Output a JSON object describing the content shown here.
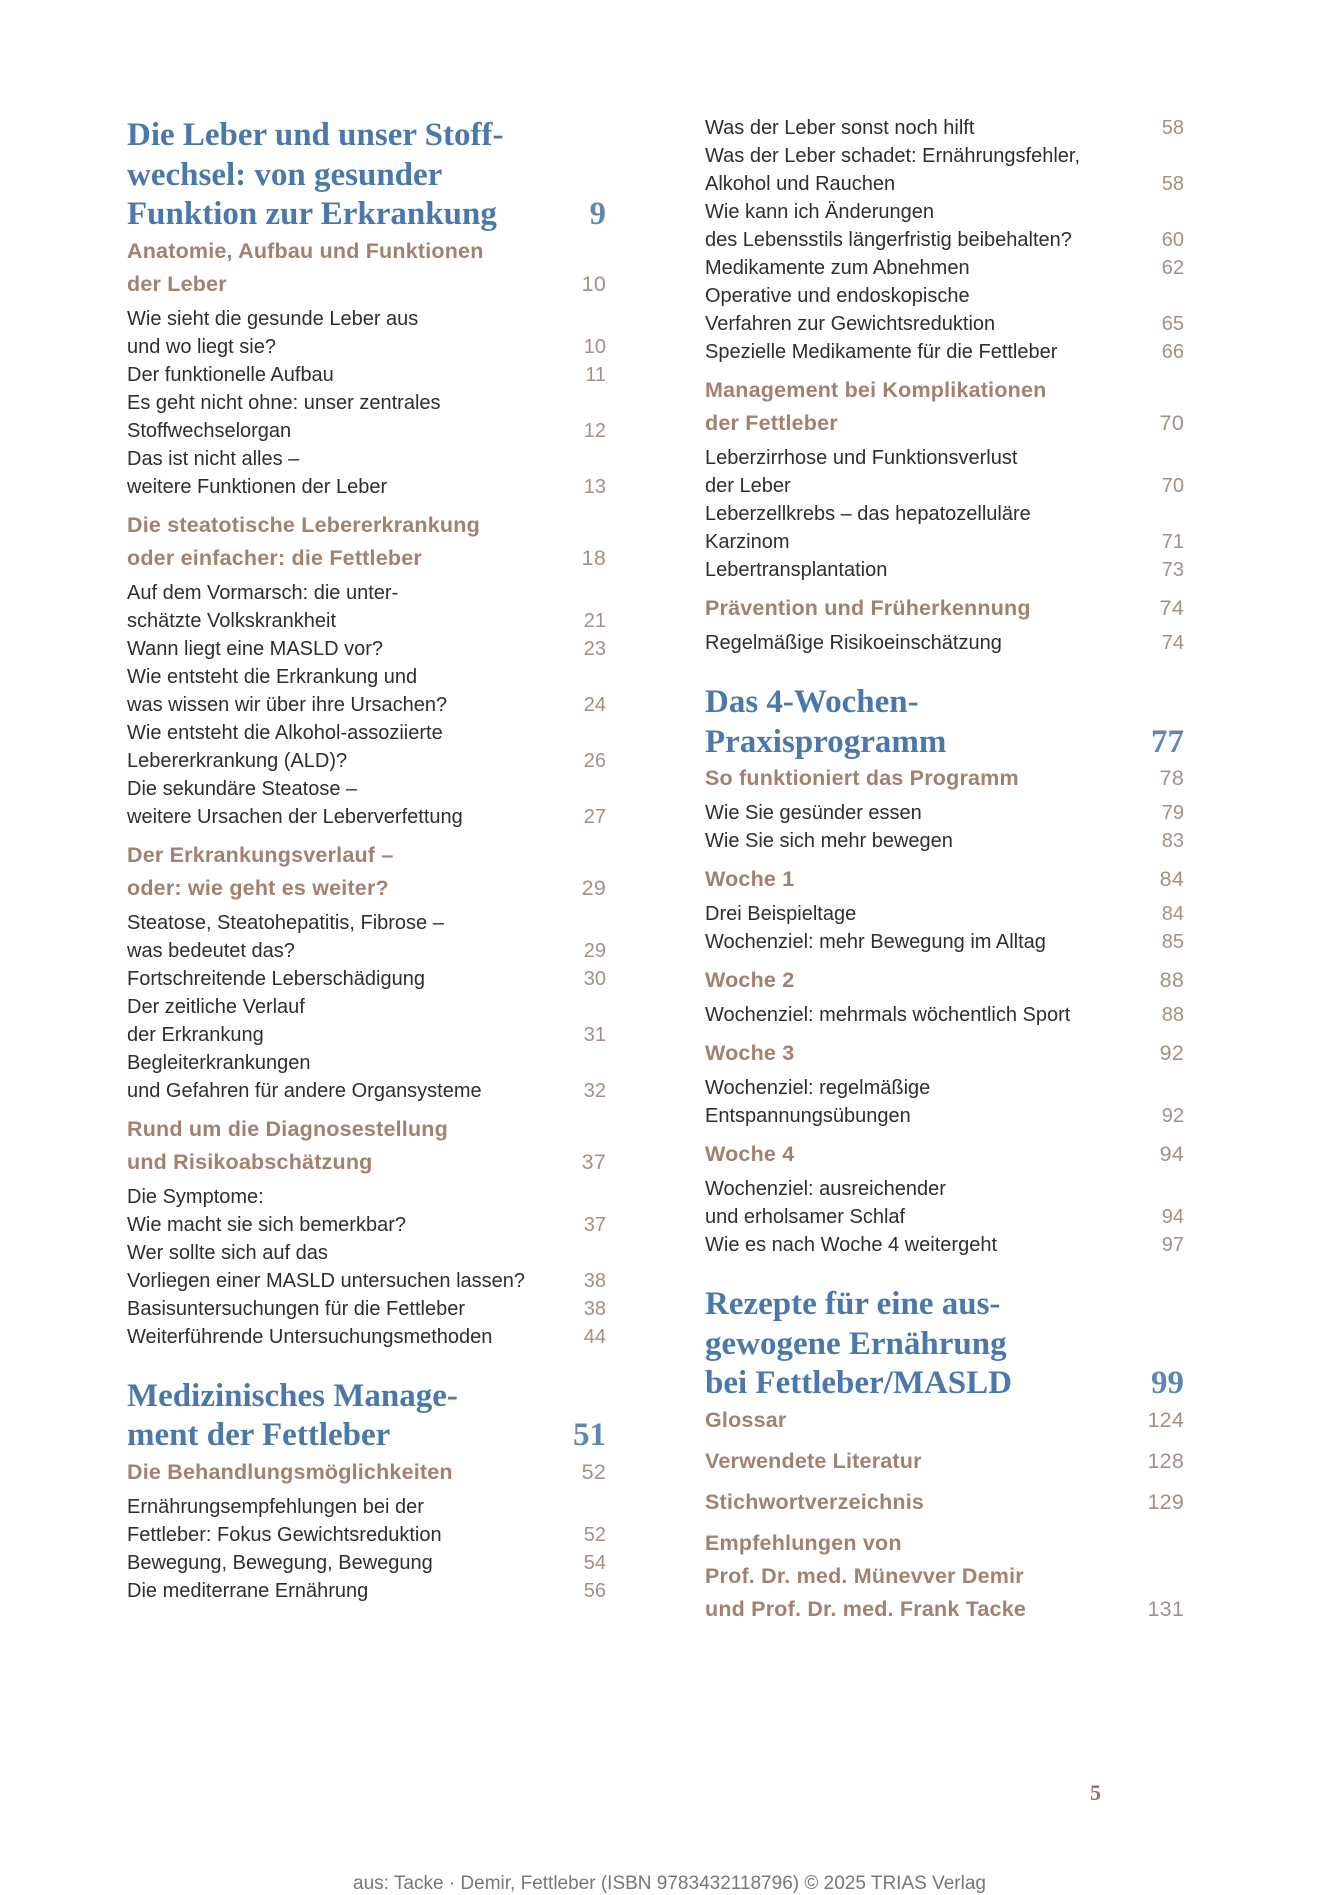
{
  "colors": {
    "chapter": "#4a78aa",
    "section": "#a2816f",
    "item": "#2e2e2e",
    "page_numbers": "#a49083"
  },
  "toc": {
    "left": [
      {
        "type": "chapter",
        "lines": [
          "Die Leber und unser Stoff-",
          "wechsel: von gesunder",
          "Funktion zur Erkrankung"
        ],
        "page": "9"
      },
      {
        "type": "section",
        "lines": [
          "Anatomie, Aufbau und Funktionen",
          "der Leber"
        ],
        "page": "10"
      },
      {
        "type": "item",
        "lines": [
          "Wie sieht die gesunde Leber aus",
          "und wo liegt sie?"
        ],
        "page": "10"
      },
      {
        "type": "item",
        "lines": [
          "Der funktionelle Aufbau"
        ],
        "page": "11"
      },
      {
        "type": "item",
        "lines": [
          "Es geht nicht ohne: unser zentrales",
          "Stoffwechselorgan"
        ],
        "page": "12"
      },
      {
        "type": "item",
        "lines": [
          "Das ist nicht alles –",
          "weitere Funktionen der Leber"
        ],
        "page": "13"
      },
      {
        "type": "section",
        "lines": [
          "Die steatotische Lebererkrankung",
          "oder einfacher: die Fettleber"
        ],
        "page": "18"
      },
      {
        "type": "item",
        "lines": [
          "Auf dem Vormarsch: die unter-",
          "schätzte Volkskrankheit"
        ],
        "page": "21"
      },
      {
        "type": "item",
        "lines": [
          "Wann liegt eine MASLD vor?"
        ],
        "page": "23"
      },
      {
        "type": "item",
        "lines": [
          "Wie entsteht die Erkrankung und",
          "was wissen wir über ihre Ursachen?"
        ],
        "page": "24"
      },
      {
        "type": "item",
        "lines": [
          "Wie entsteht die Alkohol-assoziierte",
          "Lebererkrankung (ALD)?"
        ],
        "page": "26"
      },
      {
        "type": "item",
        "lines": [
          "Die sekundäre Steatose –",
          "weitere Ursachen der Leberverfettung"
        ],
        "page": "27"
      },
      {
        "type": "section",
        "lines": [
          "Der Erkrankungsverlauf –",
          "oder: wie geht es weiter?"
        ],
        "page": "29"
      },
      {
        "type": "item",
        "lines": [
          "Steatose, Steatohepatitis, Fibrose –",
          "was bedeutet das?"
        ],
        "page": "29"
      },
      {
        "type": "item",
        "lines": [
          "Fortschreitende Leberschädigung"
        ],
        "page": "30"
      },
      {
        "type": "item",
        "lines": [
          "Der zeitliche Verlauf",
          "der Erkrankung"
        ],
        "page": "31"
      },
      {
        "type": "item",
        "lines": [
          "Begleiterkrankungen",
          "und Gefahren für andere Organsysteme"
        ],
        "page": "32"
      },
      {
        "type": "section",
        "lines": [
          "Rund um die Diagnosestellung",
          "und Risikoabschätzung"
        ],
        "page": "37"
      },
      {
        "type": "item",
        "lines": [
          "Die Symptome:",
          "Wie macht sie sich bemerkbar?"
        ],
        "page": "37"
      },
      {
        "type": "item",
        "lines": [
          "Wer sollte sich auf das",
          "Vorliegen einer MASLD untersuchen lassen?"
        ],
        "page": "38"
      },
      {
        "type": "item",
        "lines": [
          "Basisuntersuchungen für die Fettleber"
        ],
        "page": "38"
      },
      {
        "type": "item",
        "lines": [
          "Weiterführende Untersuchungsmethoden"
        ],
        "page": "44"
      },
      {
        "type": "chapter",
        "lines": [
          "Medizinisches Manage-",
          "ment der Fettleber"
        ],
        "page": "51"
      },
      {
        "type": "section",
        "lines": [
          "Die Behandlungsmöglichkeiten"
        ],
        "page": "52"
      },
      {
        "type": "item",
        "lines": [
          "Ernährungsempfehlungen bei der",
          "Fettleber: Fokus Gewichtsreduktion"
        ],
        "page": "52"
      },
      {
        "type": "item",
        "lines": [
          "Bewegung, Bewegung, Bewegung"
        ],
        "page": "54"
      },
      {
        "type": "item",
        "lines": [
          "Die mediterrane Ernährung"
        ],
        "page": "56"
      }
    ],
    "right": [
      {
        "type": "item",
        "lines": [
          "Was der Leber sonst noch hilft"
        ],
        "page": "58"
      },
      {
        "type": "item",
        "lines": [
          "Was der Leber schadet: Ernährungsfehler,",
          "Alkohol und Rauchen"
        ],
        "page": "58"
      },
      {
        "type": "item",
        "lines": [
          "Wie kann ich Änderungen",
          "des Lebensstils längerfristig beibehalten?"
        ],
        "page": "60"
      },
      {
        "type": "item",
        "lines": [
          "Medikamente zum Abnehmen"
        ],
        "page": "62"
      },
      {
        "type": "item",
        "lines": [
          "Operative und endoskopische",
          "Verfahren zur Gewichtsreduktion"
        ],
        "page": "65"
      },
      {
        "type": "item",
        "lines": [
          "Spezielle Medikamente für die Fettleber"
        ],
        "page": "66"
      },
      {
        "type": "section",
        "lines": [
          "Management bei Komplikationen",
          "der Fettleber"
        ],
        "page": "70"
      },
      {
        "type": "item",
        "lines": [
          "Leberzirrhose und Funktionsverlust",
          "der Leber"
        ],
        "page": "70"
      },
      {
        "type": "item",
        "lines": [
          "Leberzellkrebs – das hepatozelluläre",
          "Karzinom"
        ],
        "page": "71"
      },
      {
        "type": "item",
        "lines": [
          "Lebertransplantation"
        ],
        "page": "73"
      },
      {
        "type": "section",
        "lines": [
          "Prävention und Früherkennung"
        ],
        "page": "74"
      },
      {
        "type": "item",
        "lines": [
          "Regelmäßige Risikoeinschätzung"
        ],
        "page": "74"
      },
      {
        "type": "chapter",
        "lines": [
          "Das 4-Wochen-",
          "Praxisprogramm"
        ],
        "page": "77"
      },
      {
        "type": "section",
        "lines": [
          "So funktioniert das Programm"
        ],
        "page": "78"
      },
      {
        "type": "item",
        "lines": [
          "Wie Sie gesünder essen"
        ],
        "page": "79"
      },
      {
        "type": "item",
        "lines": [
          "Wie Sie sich mehr bewegen"
        ],
        "page": "83"
      },
      {
        "type": "section",
        "lines": [
          "Woche 1"
        ],
        "page": "84"
      },
      {
        "type": "item",
        "lines": [
          "Drei Beispieltage"
        ],
        "page": "84"
      },
      {
        "type": "item",
        "lines": [
          "Wochenziel: mehr Bewegung im Alltag"
        ],
        "page": "85"
      },
      {
        "type": "section",
        "lines": [
          "Woche 2"
        ],
        "page": "88"
      },
      {
        "type": "item",
        "lines": [
          "Wochenziel: mehrmals wöchentlich Sport"
        ],
        "page": "88"
      },
      {
        "type": "section",
        "lines": [
          "Woche 3"
        ],
        "page": "92"
      },
      {
        "type": "item",
        "lines": [
          "Wochenziel: regelmäßige",
          "Entspannungsübungen"
        ],
        "page": "92"
      },
      {
        "type": "section",
        "lines": [
          "Woche 4"
        ],
        "page": "94"
      },
      {
        "type": "item",
        "lines": [
          "Wochenziel: ausreichender",
          "und erholsamer Schlaf"
        ],
        "page": "94"
      },
      {
        "type": "item",
        "lines": [
          "Wie es nach Woche 4 weitergeht"
        ],
        "page": "97"
      },
      {
        "type": "chapter",
        "lines": [
          "Rezepte für eine aus-",
          "gewogene Ernährung",
          "bei Fettleber/MASLD"
        ],
        "page": "99"
      },
      {
        "type": "section",
        "lines": [
          "Glossar"
        ],
        "page": "124"
      },
      {
        "type": "section",
        "lines": [
          "Verwendete Literatur"
        ],
        "page": "128"
      },
      {
        "type": "section",
        "lines": [
          "Stichwortverzeichnis"
        ],
        "page": "129"
      },
      {
        "type": "section",
        "lines": [
          "Empfehlungen von",
          "Prof. Dr. med. Münevver Demir",
          "und Prof. Dr. med. Frank Tacke"
        ],
        "page": "131"
      }
    ]
  },
  "page_number": "5",
  "footer": "aus: Tacke · Demir, Fettleber (ISBN 9783432118796) © 2025 TRIAS Verlag"
}
